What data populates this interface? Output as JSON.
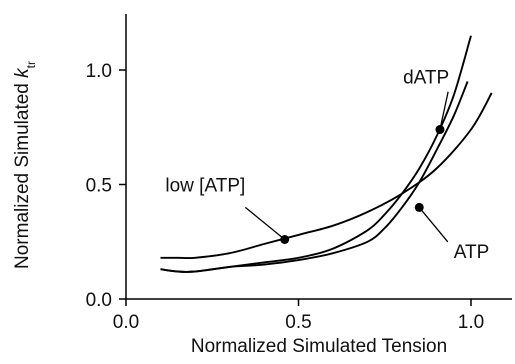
{
  "chart_data": {
    "type": "line",
    "title": "",
    "xlabel": "Normalized Simulated Tension",
    "ylabel_main": "Normalized Simulated ",
    "ylabel_k": "k",
    "ylabel_sub": "tr",
    "xlim": [
      0.0,
      1.1
    ],
    "ylim": [
      0.0,
      1.25
    ],
    "x_ticks": [
      0.0,
      0.5,
      1.0
    ],
    "y_ticks": [
      0.0,
      0.5,
      1.0
    ],
    "x_tick_labels": [
      "0.0",
      "0.5",
      "1.0"
    ],
    "y_tick_labels": [
      "0.0",
      "0.5",
      "1.0"
    ],
    "grid": false,
    "series": [
      {
        "x": [
          0.1,
          0.15,
          0.2,
          0.3,
          0.4,
          0.5,
          0.6,
          0.7,
          0.75,
          0.8,
          0.85,
          0.9,
          0.95,
          1.0
        ],
        "y": [
          0.13,
          0.12,
          0.12,
          0.14,
          0.16,
          0.18,
          0.22,
          0.3,
          0.37,
          0.46,
          0.57,
          0.71,
          0.89,
          1.15
        ]
      },
      {
        "x": [
          0.1,
          0.15,
          0.2,
          0.3,
          0.4,
          0.5,
          0.6,
          0.7,
          0.75,
          0.8,
          0.85,
          0.9,
          0.95,
          0.99
        ],
        "y": [
          0.13,
          0.12,
          0.12,
          0.14,
          0.15,
          0.17,
          0.2,
          0.25,
          0.31,
          0.4,
          0.51,
          0.65,
          0.8,
          0.95
        ]
      },
      {
        "x": [
          0.1,
          0.15,
          0.2,
          0.3,
          0.4,
          0.5,
          0.6,
          0.7,
          0.8,
          0.9,
          1.0,
          1.06
        ],
        "y": [
          0.18,
          0.18,
          0.18,
          0.2,
          0.24,
          0.28,
          0.32,
          0.38,
          0.46,
          0.57,
          0.74,
          0.9
        ]
      }
    ],
    "markers": [
      {
        "x": 0.91,
        "y": 0.74
      },
      {
        "x": 0.85,
        "y": 0.4
      },
      {
        "x": 0.46,
        "y": 0.26
      }
    ],
    "annotations": [
      {
        "text": "dATP",
        "x": 0.87,
        "y": 0.94
      },
      {
        "text": "ATP",
        "x": 0.95,
        "y": 0.18
      },
      {
        "text": "low [ATP]",
        "x": 0.23,
        "y": 0.47
      }
    ]
  }
}
